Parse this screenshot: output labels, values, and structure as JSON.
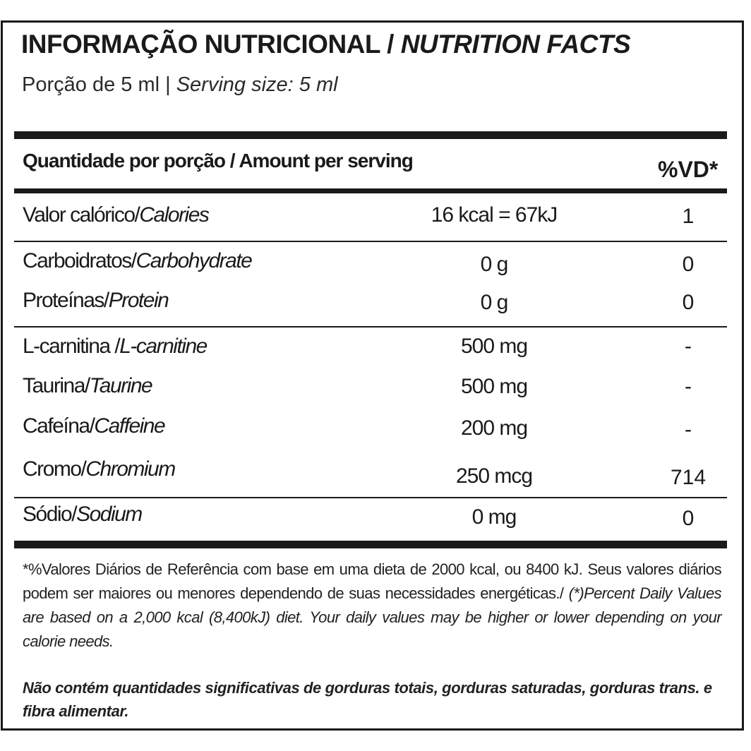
{
  "label": {
    "title_pt": "INFORMAÇÃO NUTRICIONAL /",
    "title_en": "NUTRITION FACTS",
    "serving_pt": "Porção de 5 ml |",
    "serving_en": "Serving size: 5 ml",
    "header_amount": "Quantidade por porção / Amount per serving",
    "header_vd": "%VD*",
    "rows": [
      {
        "name_pt": "Valor calórico/",
        "name_en": "Calories",
        "amount": "16 kcal = 67kJ",
        "vd": "1"
      },
      {
        "name_pt": "Carboidratos/",
        "name_en": "Carbohydrate",
        "amount": "0 g",
        "vd": "0"
      },
      {
        "name_pt": "Proteínas/",
        "name_en": "Protein",
        "amount": "0 g",
        "vd": "0"
      },
      {
        "name_pt": "L-carnitina /",
        "name_en": "L-carnitine",
        "amount": "500 mg",
        "vd": "-"
      },
      {
        "name_pt": "Taurina/",
        "name_en": "Taurine",
        "amount": "500 mg",
        "vd": "-"
      },
      {
        "name_pt": "Cafeína/",
        "name_en": "Caffeine",
        "amount": "200 mg",
        "vd": "-"
      },
      {
        "name_pt": "Cromo/",
        "name_en": "Chromium",
        "amount": "250 mcg",
        "vd": "714"
      },
      {
        "name_pt": "Sódio/",
        "name_en": "Sodium",
        "amount": "0 mg",
        "vd": "0"
      }
    ],
    "footnote_pt": "*%Valores Diários de Referência com base em uma dieta de 2000 kcal, ou 8400 kJ. Seus valores diários podem ser maiores ou menores dependendo de suas necessidades energéticas./",
    "footnote_en": "(*)Percent Daily Values are based on a 2,000 kcal (8,400kJ) diet. Your daily values may be higher or lower depending on your calorie needs.",
    "disclaimer": "Não contém quantidades significativas de gorduras totais, gorduras saturadas, gorduras trans. e fibra alimentar."
  }
}
